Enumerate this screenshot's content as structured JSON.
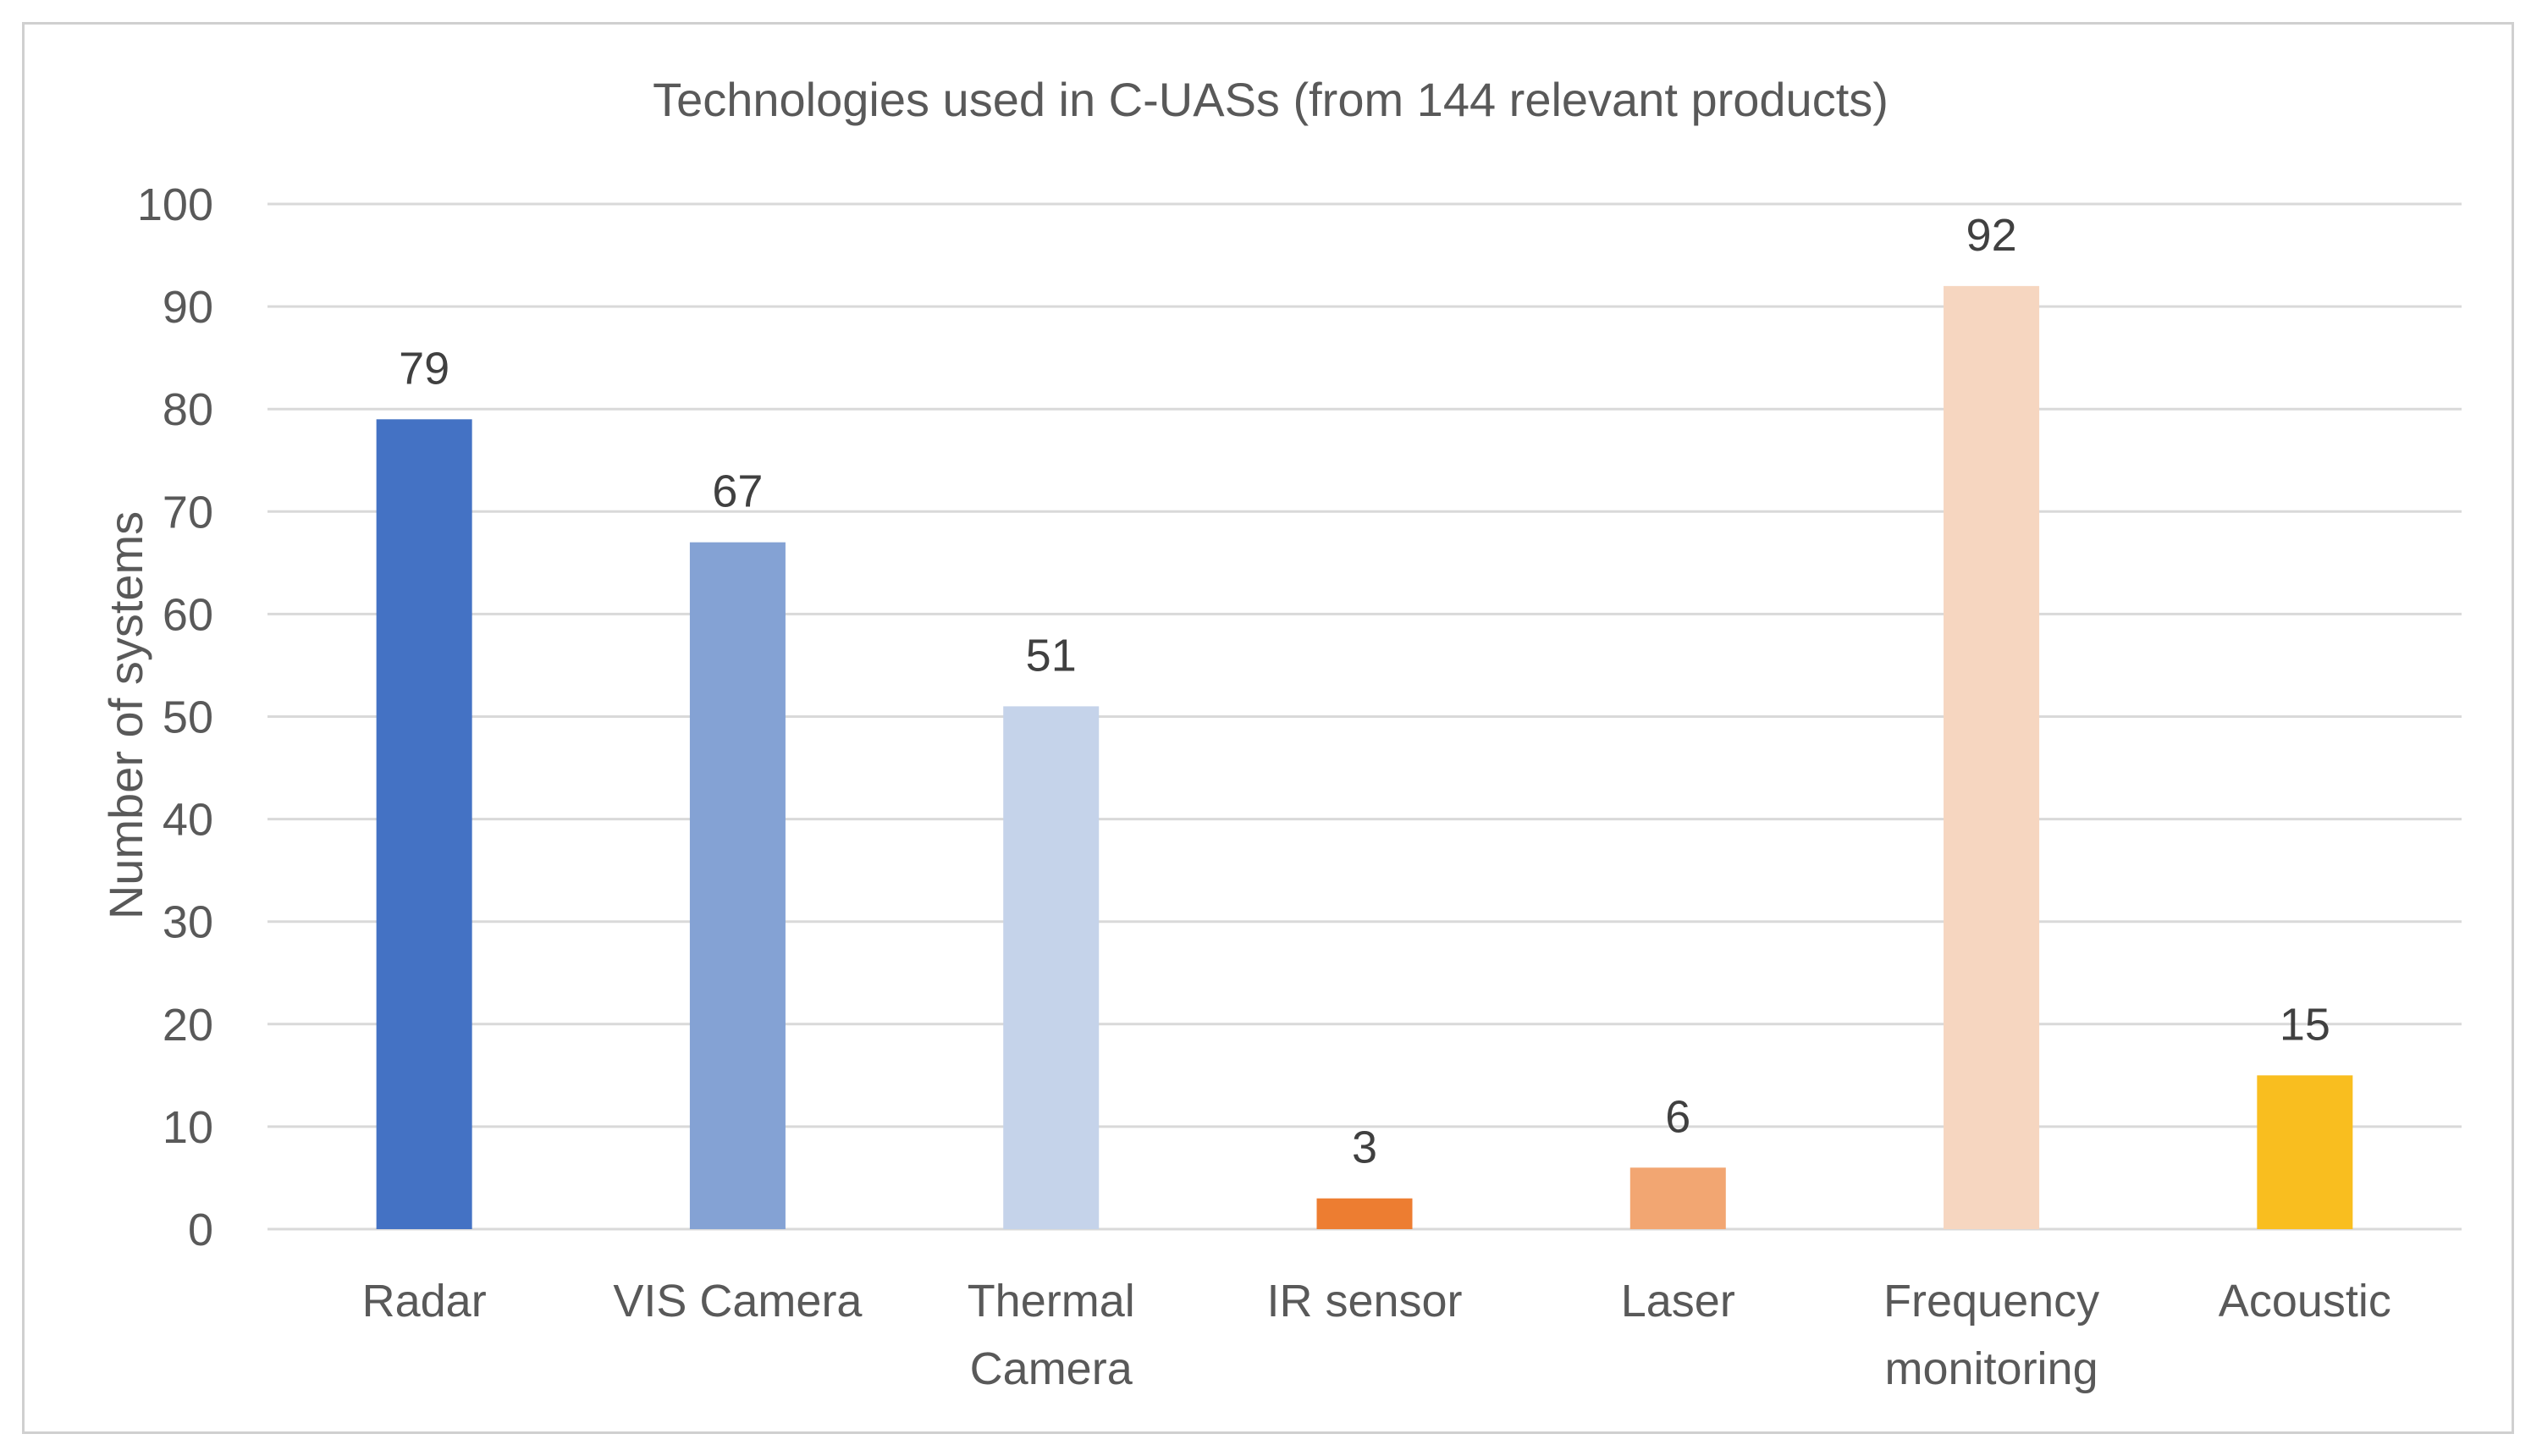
{
  "chart_data": {
    "type": "bar",
    "title": "Technologies used in C-UASs (from 144 relevant products)",
    "xlabel": "",
    "ylabel": "Number of systems",
    "ylim": [
      0,
      100
    ],
    "yticks": [
      0,
      10,
      20,
      30,
      40,
      50,
      60,
      70,
      80,
      90,
      100
    ],
    "grid": true,
    "categories": [
      [
        "Radar"
      ],
      [
        "VIS Camera"
      ],
      [
        "Thermal",
        "Camera"
      ],
      [
        "IR sensor"
      ],
      [
        "Laser"
      ],
      [
        "Frequency",
        "monitoring"
      ],
      [
        "Acoustic"
      ]
    ],
    "values": [
      79,
      67,
      51,
      3,
      6,
      92,
      15
    ],
    "colors": [
      "#4472c4",
      "#84a2d4",
      "#c5d3ea",
      "#ed7d31",
      "#f2a672",
      "#f6d6c0",
      "#f9be1f"
    ]
  }
}
